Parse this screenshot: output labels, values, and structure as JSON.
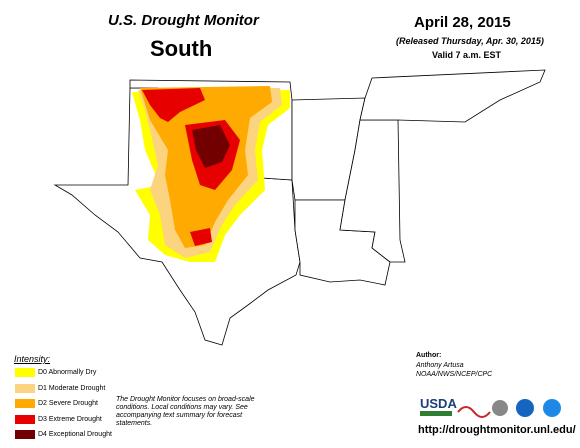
{
  "header": {
    "title": "U.S. Drought Monitor",
    "region": "South",
    "date": "April 28, 2015",
    "released": "(Released Thursday, Apr. 30, 2015)",
    "valid": "Valid 7 a.m. EST"
  },
  "legend": {
    "title": "Intensity:",
    "items": [
      {
        "label": "D0 Abnormally Dry",
        "color": "#ffff00"
      },
      {
        "label": "D1 Moderate Drought",
        "color": "#fcd37f"
      },
      {
        "label": "D2 Severe Drought",
        "color": "#ffaa00"
      },
      {
        "label": "D3 Extreme Drought",
        "color": "#e60000"
      },
      {
        "label": "D4 Exceptional Drought",
        "color": "#730000"
      }
    ]
  },
  "note": "The Drought Monitor focuses on broad-scale conditions. Local conditions may vary. See accompanying text summary for forecast statements.",
  "author": {
    "label": "Author:",
    "name": "Anthony Artusa",
    "org": "NOAA/NWS/NCEP/CPC"
  },
  "logo": "USDA",
  "url": "http://droughtmonitor.unl.edu/"
}
